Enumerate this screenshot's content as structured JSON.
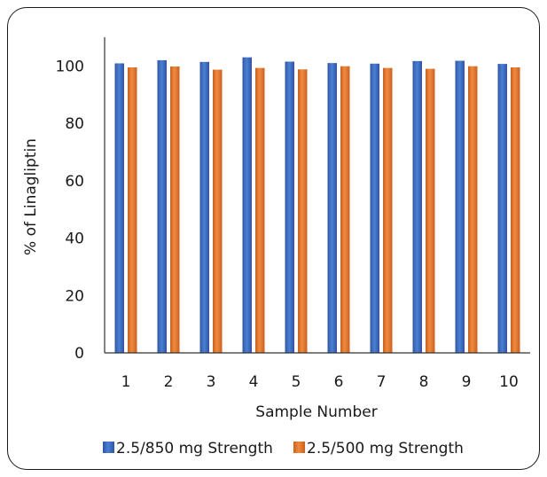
{
  "chart_data": {
    "type": "bar",
    "title": "",
    "xlabel": "Sample Number",
    "ylabel": "% of Linagliptin",
    "categories": [
      "1",
      "2",
      "3",
      "4",
      "5",
      "6",
      "7",
      "8",
      "9",
      "10"
    ],
    "series": [
      {
        "name": "2.5/850 mg Strength",
        "color": "#4472c4",
        "values": [
          100.9,
          102.0,
          101.4,
          103.0,
          101.5,
          101.0,
          100.8,
          101.7,
          101.8,
          100.7
        ]
      },
      {
        "name": "2.5/500 mg Strength",
        "color": "#ed7d31",
        "values": [
          99.5,
          99.8,
          98.7,
          99.3,
          98.8,
          99.9,
          99.3,
          99.0,
          99.9,
          99.5
        ]
      }
    ],
    "ylim": [
      0,
      110
    ],
    "yticks": [
      0,
      20,
      40,
      60,
      80,
      100
    ],
    "grid": false,
    "legend_position": "bottom"
  }
}
